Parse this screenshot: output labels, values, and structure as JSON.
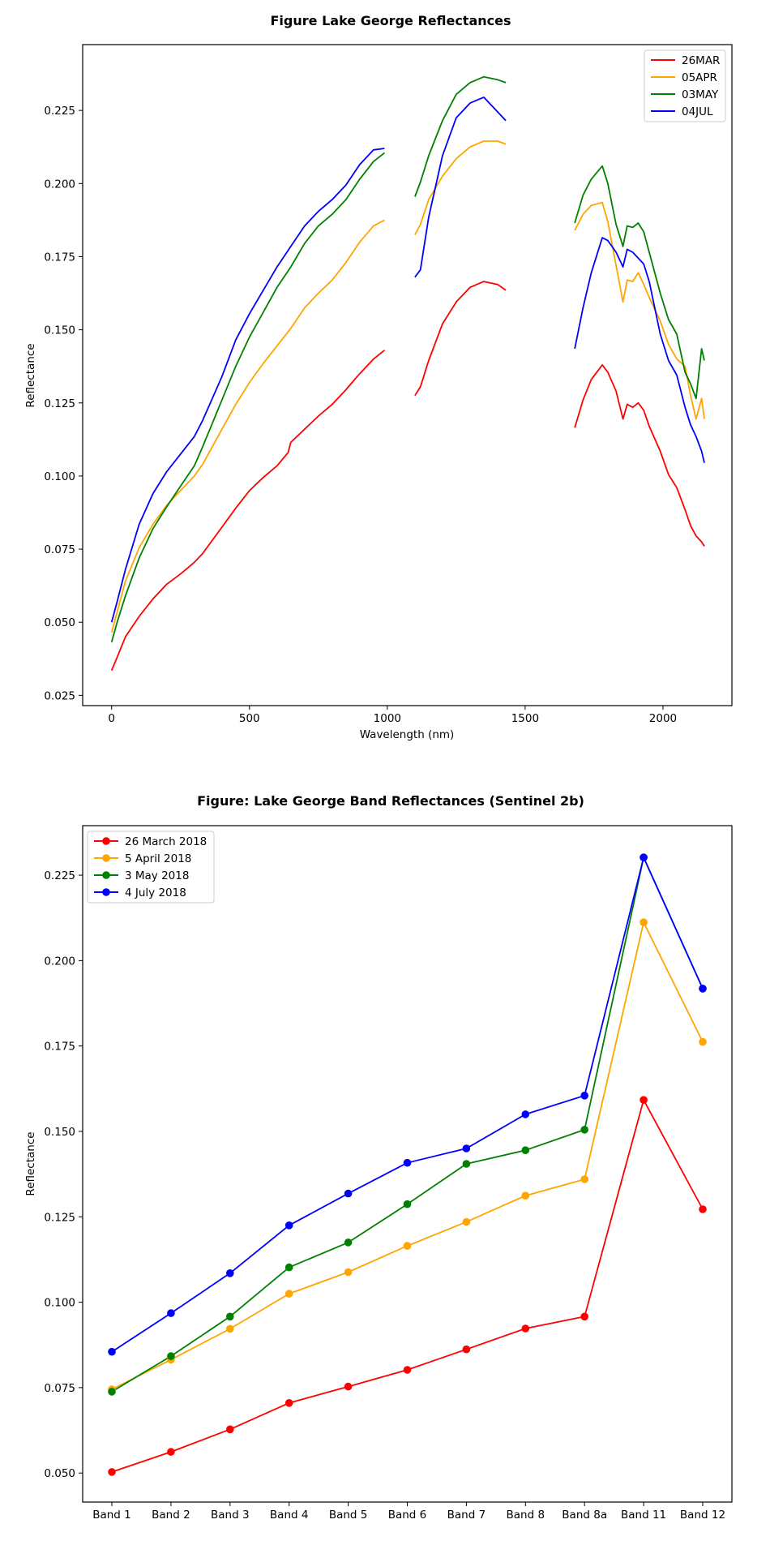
{
  "chart_data": [
    {
      "type": "line",
      "title": "Figure Lake George Reflectances",
      "xlabel": "Wavelength (nm)",
      "ylabel": "Reflectance",
      "xlim": [
        -105,
        2250
      ],
      "ylim": [
        0.0215,
        0.2475
      ],
      "xticks": [
        0,
        500,
        1000,
        1500,
        2000
      ],
      "xtick_labels": [
        "0",
        "500",
        "1000",
        "1500",
        "2000"
      ],
      "yticks": [
        0.025,
        0.05,
        0.075,
        0.1,
        0.125,
        0.15,
        0.175,
        0.2,
        0.225
      ],
      "ytick_labels": [
        "0.025",
        "0.050",
        "0.075",
        "0.100",
        "0.125",
        "0.150",
        "0.175",
        "0.200",
        "0.225"
      ],
      "grid": false,
      "legend": "top-right",
      "series": [
        {
          "name": "26MAR",
          "color": "#ff0000",
          "segments": [
            [
              [
                0,
                0.0335
              ],
              [
                20,
                0.038
              ],
              [
                50,
                0.045
              ],
              [
                100,
                0.052
              ],
              [
                150,
                0.058
              ],
              [
                200,
                0.063
              ],
              [
                250,
                0.0665
              ],
              [
                300,
                0.0705
              ],
              [
                330,
                0.0735
              ],
              [
                400,
                0.0825
              ],
              [
                450,
                0.089
              ],
              [
                500,
                0.095
              ],
              [
                550,
                0.0995
              ],
              [
                600,
                0.1035
              ],
              [
                640,
                0.108
              ],
              [
                650,
                0.1115
              ],
              [
                700,
                0.116
              ],
              [
                750,
                0.1205
              ],
              [
                800,
                0.1245
              ],
              [
                850,
                0.1295
              ],
              [
                900,
                0.135
              ],
              [
                950,
                0.14
              ],
              [
                990,
                0.143
              ]
            ],
            [
              [
                1100,
                0.1275
              ],
              [
                1120,
                0.1305
              ],
              [
                1150,
                0.1395
              ],
              [
                1200,
                0.152
              ],
              [
                1250,
                0.1595
              ],
              [
                1300,
                0.1645
              ],
              [
                1350,
                0.1665
              ],
              [
                1400,
                0.1655
              ],
              [
                1430,
                0.1635
              ]
            ],
            [
              [
                1680,
                0.1165
              ],
              [
                1710,
                0.126
              ],
              [
                1740,
                0.133
              ],
              [
                1780,
                0.138
              ],
              [
                1800,
                0.1355
              ],
              [
                1830,
                0.129
              ],
              [
                1855,
                0.1195
              ],
              [
                1870,
                0.1245
              ],
              [
                1890,
                0.1235
              ],
              [
                1910,
                0.125
              ],
              [
                1930,
                0.1225
              ],
              [
                1950,
                0.117
              ],
              [
                1990,
                0.1085
              ],
              [
                2020,
                0.1005
              ],
              [
                2050,
                0.096
              ],
              [
                2080,
                0.0885
              ],
              [
                2100,
                0.083
              ],
              [
                2120,
                0.0795
              ],
              [
                2140,
                0.0775
              ],
              [
                2150,
                0.076
              ]
            ]
          ]
        },
        {
          "name": "05APR",
          "color": "#ffa500",
          "segments": [
            [
              [
                0,
                0.0465
              ],
              [
                20,
                0.0535
              ],
              [
                50,
                0.064
              ],
              [
                100,
                0.0755
              ],
              [
                150,
                0.0835
              ],
              [
                200,
                0.09
              ],
              [
                250,
                0.095
              ],
              [
                300,
                0.1
              ],
              [
                330,
                0.104
              ],
              [
                400,
                0.116
              ],
              [
                450,
                0.1245
              ],
              [
                500,
                0.132
              ],
              [
                550,
                0.1385
              ],
              [
                600,
                0.1445
              ],
              [
                650,
                0.1505
              ],
              [
                700,
                0.1575
              ],
              [
                750,
                0.1625
              ],
              [
                800,
                0.167
              ],
              [
                850,
                0.173
              ],
              [
                900,
                0.18
              ],
              [
                950,
                0.1855
              ],
              [
                990,
                0.1875
              ]
            ],
            [
              [
                1100,
                0.1825
              ],
              [
                1120,
                0.186
              ],
              [
                1150,
                0.1945
              ],
              [
                1200,
                0.2025
              ],
              [
                1250,
                0.2085
              ],
              [
                1300,
                0.2125
              ],
              [
                1350,
                0.2145
              ],
              [
                1400,
                0.2145
              ],
              [
                1430,
                0.2135
              ]
            ],
            [
              [
                1680,
                0.184
              ],
              [
                1710,
                0.1895
              ],
              [
                1740,
                0.1925
              ],
              [
                1780,
                0.1935
              ],
              [
                1800,
                0.187
              ],
              [
                1830,
                0.172
              ],
              [
                1855,
                0.1595
              ],
              [
                1870,
                0.167
              ],
              [
                1890,
                0.1665
              ],
              [
                1910,
                0.1695
              ],
              [
                1930,
                0.1655
              ],
              [
                1950,
                0.161
              ],
              [
                1990,
                0.153
              ],
              [
                2020,
                0.145
              ],
              [
                2050,
                0.14
              ],
              [
                2080,
                0.1375
              ],
              [
                2100,
                0.1275
              ],
              [
                2120,
                0.1195
              ],
              [
                2140,
                0.1265
              ],
              [
                2150,
                0.1195
              ]
            ]
          ]
        },
        {
          "name": "03MAY",
          "color": "#008000",
          "segments": [
            [
              [
                0,
                0.0432
              ],
              [
                20,
                0.05
              ],
              [
                50,
                0.059
              ],
              [
                100,
                0.072
              ],
              [
                150,
                0.082
              ],
              [
                200,
                0.0895
              ],
              [
                250,
                0.0965
              ],
              [
                300,
                0.1035
              ],
              [
                330,
                0.11
              ],
              [
                400,
                0.126
              ],
              [
                450,
                0.1375
              ],
              [
                500,
                0.1475
              ],
              [
                550,
                0.156
              ],
              [
                600,
                0.1645
              ],
              [
                650,
                0.1715
              ],
              [
                700,
                0.1795
              ],
              [
                750,
                0.1855
              ],
              [
                800,
                0.1895
              ],
              [
                850,
                0.1945
              ],
              [
                900,
                0.2015
              ],
              [
                950,
                0.2075
              ],
              [
                990,
                0.2105
              ]
            ],
            [
              [
                1100,
                0.1955
              ],
              [
                1120,
                0.2005
              ],
              [
                1150,
                0.2095
              ],
              [
                1200,
                0.2215
              ],
              [
                1250,
                0.2305
              ],
              [
                1300,
                0.2345
              ],
              [
                1350,
                0.2365
              ],
              [
                1400,
                0.2355
              ],
              [
                1430,
                0.2345
              ]
            ],
            [
              [
                1680,
                0.1865
              ],
              [
                1710,
                0.196
              ],
              [
                1740,
                0.2015
              ],
              [
                1780,
                0.206
              ],
              [
                1800,
                0.2
              ],
              [
                1830,
                0.186
              ],
              [
                1855,
                0.1785
              ],
              [
                1870,
                0.1855
              ],
              [
                1890,
                0.185
              ],
              [
                1910,
                0.1865
              ],
              [
                1930,
                0.1835
              ],
              [
                1950,
                0.1765
              ],
              [
                1990,
                0.1625
              ],
              [
                2020,
                0.1535
              ],
              [
                2050,
                0.1485
              ],
              [
                2080,
                0.1355
              ],
              [
                2100,
                0.1315
              ],
              [
                2120,
                0.1265
              ],
              [
                2140,
                0.1435
              ],
              [
                2150,
                0.1395
              ]
            ]
          ]
        },
        {
          "name": "04JUL",
          "color": "#0000ff",
          "segments": [
            [
              [
                0,
                0.05
              ],
              [
                20,
                0.057
              ],
              [
                50,
                0.068
              ],
              [
                100,
                0.0835
              ],
              [
                150,
                0.094
              ],
              [
                200,
                0.1015
              ],
              [
                250,
                0.1075
              ],
              [
                300,
                0.1135
              ],
              [
                330,
                0.119
              ],
              [
                400,
                0.134
              ],
              [
                450,
                0.1465
              ],
              [
                500,
                0.1555
              ],
              [
                550,
                0.1635
              ],
              [
                600,
                0.1715
              ],
              [
                650,
                0.1785
              ],
              [
                700,
                0.1855
              ],
              [
                750,
                0.1905
              ],
              [
                800,
                0.1945
              ],
              [
                850,
                0.1995
              ],
              [
                900,
                0.2065
              ],
              [
                950,
                0.2115
              ],
              [
                990,
                0.212
              ]
            ],
            [
              [
                1100,
                0.168
              ],
              [
                1120,
                0.1705
              ],
              [
                1150,
                0.1885
              ],
              [
                1200,
                0.2095
              ],
              [
                1250,
                0.2225
              ],
              [
                1300,
                0.2275
              ],
              [
                1350,
                0.2295
              ],
              [
                1400,
                0.2245
              ],
              [
                1430,
                0.2215
              ]
            ],
            [
              [
                1680,
                0.1435
              ],
              [
                1710,
                0.1575
              ],
              [
                1740,
                0.1695
              ],
              [
                1780,
                0.1815
              ],
              [
                1800,
                0.1805
              ],
              [
                1830,
                0.1765
              ],
              [
                1855,
                0.1715
              ],
              [
                1870,
                0.1775
              ],
              [
                1890,
                0.1765
              ],
              [
                1910,
                0.1745
              ],
              [
                1930,
                0.1725
              ],
              [
                1950,
                0.1665
              ],
              [
                1990,
                0.1485
              ],
              [
                2020,
                0.1395
              ],
              [
                2050,
                0.1345
              ],
              [
                2080,
                0.1235
              ],
              [
                2100,
                0.1175
              ],
              [
                2120,
                0.1135
              ],
              [
                2140,
                0.1085
              ],
              [
                2150,
                0.1045
              ]
            ]
          ]
        }
      ]
    },
    {
      "type": "line",
      "title": "Figure: Lake George Band Reflectances (Sentinel 2b)",
      "xlabel": "",
      "ylabel": "Reflectance",
      "categories": [
        "Band 1",
        "Band 2",
        "Band 3",
        "Band 4",
        "Band 5",
        "Band 6",
        "Band 7",
        "Band 8",
        "Band 8a",
        "Band 11",
        "Band 12"
      ],
      "ylim": [
        0.0415,
        0.2395
      ],
      "yticks": [
        0.05,
        0.075,
        0.1,
        0.125,
        0.15,
        0.175,
        0.2,
        0.225
      ],
      "ytick_labels": [
        "0.050",
        "0.075",
        "0.100",
        "0.125",
        "0.150",
        "0.175",
        "0.200",
        "0.225"
      ],
      "grid": false,
      "legend": "top-left",
      "markers": true,
      "series": [
        {
          "name": "26 March 2018",
          "color": "#ff0000",
          "values": [
            0.0503,
            0.0562,
            0.0628,
            0.0705,
            0.0753,
            0.0802,
            0.0862,
            0.0923,
            0.0958,
            0.1592,
            0.1272
          ]
        },
        {
          "name": "5 April 2018",
          "color": "#ffa500",
          "values": [
            0.0745,
            0.0832,
            0.0922,
            0.1025,
            0.1088,
            0.1165,
            0.1235,
            0.1312,
            0.136,
            0.2112,
            0.1762
          ]
        },
        {
          "name": "3 May 2018",
          "color": "#008000",
          "values": [
            0.0738,
            0.0842,
            0.0958,
            0.1102,
            0.1175,
            0.1287,
            0.1405,
            0.1445,
            0.1505,
            0.2302,
            0.1918
          ]
        },
        {
          "name": "4 July 2018",
          "color": "#0000ff",
          "values": [
            0.0855,
            0.0968,
            0.1085,
            0.1225,
            0.1318,
            0.1408,
            0.145,
            0.155,
            0.1605,
            0.2302,
            0.1918
          ]
        }
      ]
    }
  ]
}
